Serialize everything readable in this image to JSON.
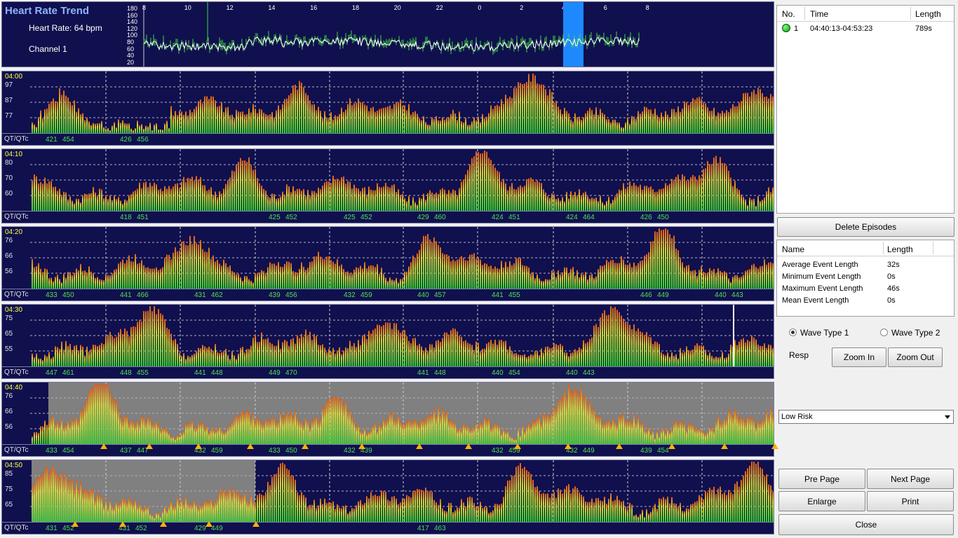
{
  "trend": {
    "title": "Heart Rate Trend",
    "heart_rate": "Heart Rate: 64 bpm",
    "channel": "Channel  1",
    "y_ticks": [
      "180",
      "160",
      "140",
      "120",
      "100",
      "80",
      "60",
      "40",
      "20"
    ],
    "x_ticks": [
      "8",
      "10",
      "12",
      "14",
      "16",
      "18",
      "20",
      "22",
      "0",
      "2",
      "4",
      "6",
      "8"
    ]
  },
  "strips": [
    {
      "time": "04:00",
      "y": [
        "97",
        "87",
        "77"
      ],
      "qt": [
        [
          "421",
          "454"
        ],
        [
          "426",
          "456"
        ]
      ]
    },
    {
      "time": "04:10",
      "y": [
        "80",
        "70",
        "60"
      ],
      "qt": [
        [
          "418",
          "451"
        ],
        [
          "425",
          "452"
        ],
        [
          "425",
          "452"
        ],
        [
          "429",
          "460"
        ],
        [
          "424",
          "451"
        ],
        [
          "424",
          "464"
        ],
        [
          "426",
          "450"
        ]
      ]
    },
    {
      "time": "04:20",
      "y": [
        "76",
        "66",
        "56"
      ],
      "qt": [
        [
          "433",
          "450"
        ],
        [
          "441",
          "466"
        ],
        [
          "431",
          "462"
        ],
        [
          "439",
          "456"
        ],
        [
          "432",
          "459"
        ],
        [
          "440",
          "457"
        ],
        [
          "441",
          "455"
        ],
        [
          "446",
          "449"
        ],
        [
          "440",
          "443"
        ]
      ]
    },
    {
      "time": "04:30",
      "y": [
        "75",
        "65",
        "55"
      ],
      "qt": [
        [
          "447",
          "461"
        ],
        [
          "448",
          "455"
        ],
        [
          "441",
          "448"
        ],
        [
          "449",
          "470"
        ],
        [
          "441",
          "448"
        ],
        [
          "440",
          "454"
        ],
        [
          "440",
          "443"
        ]
      ]
    },
    {
      "time": "04:40",
      "y": [
        "76",
        "66",
        "56"
      ],
      "qt": [
        [
          "433",
          "454"
        ],
        [
          "437",
          "447"
        ],
        [
          "432",
          "459"
        ],
        [
          "433",
          "450"
        ],
        [
          "432",
          "439"
        ],
        [
          "432",
          "459"
        ],
        [
          "432",
          "449"
        ],
        [
          "439",
          "454"
        ]
      ]
    },
    {
      "time": "04:50",
      "y": [
        "85",
        "75",
        "65"
      ],
      "qt": [
        [
          "431",
          "452"
        ],
        [
          "431",
          "452"
        ],
        [
          "429",
          "449"
        ],
        [
          "417",
          "463"
        ]
      ]
    }
  ],
  "qt_label": "QT/QTc",
  "episodes": {
    "headers": [
      "No.",
      "Time",
      "Length"
    ],
    "rows": [
      {
        "no": "1",
        "time": "04:40:13-04:53:23",
        "length": "789s"
      }
    ]
  },
  "delete_button": "Delete Episodes",
  "stats": {
    "headers": [
      "Name",
      "Length"
    ],
    "rows": [
      {
        "name": "Average Event Length",
        "value": "32s"
      },
      {
        "name": "Minimum Event Length",
        "value": "0s"
      },
      {
        "name": "Maximum Event Length",
        "value": "46s"
      },
      {
        "name": "Mean Event Length",
        "value": "0s"
      }
    ]
  },
  "wave_type_1": "Wave Type 1",
  "wave_type_2": "Wave Type 2",
  "resp_label": "Resp",
  "zoom_in": "Zoom In",
  "zoom_out": "Zoom Out",
  "risk_select": "Low Risk",
  "pre_page": "Pre Page",
  "next_page": "Next Page",
  "enlarge": "Enlarge",
  "print": "Print",
  "close": "Close",
  "colors": {
    "plot_bg": "#10104e",
    "bar_green": "#3ed83e",
    "bar_yellow": "#d8d830",
    "bar_orange": "#e07018",
    "episode_gray": "#808080",
    "highlight_blue": "#1e88ff",
    "time_yellow": "#ffff40",
    "qt_green": "#50e050"
  }
}
